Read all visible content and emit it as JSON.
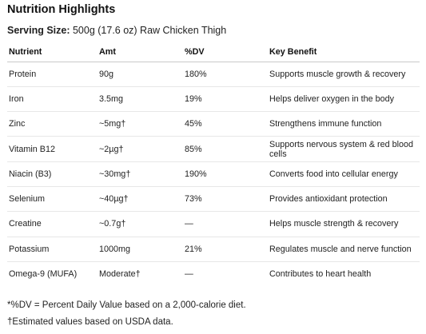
{
  "title": "Nutrition Highlights",
  "serving": {
    "label": "Serving Size:",
    "value": " 500g (17.6 oz) Raw Chicken Thigh"
  },
  "table": {
    "headers": [
      "Nutrient",
      "Amt",
      "%DV",
      "Key Benefit"
    ],
    "rows": [
      [
        "Protein",
        "90g",
        "180%",
        "Supports muscle growth & recovery"
      ],
      [
        "Iron",
        "3.5mg",
        "19%",
        "Helps deliver oxygen in the body"
      ],
      [
        "Zinc",
        "~5mg†",
        "45%",
        "Strengthens immune function"
      ],
      [
        "Vitamin B12",
        "~2µg†",
        "85%",
        "Supports nervous system & red blood cells"
      ],
      [
        "Niacin (B3)",
        "~30mg†",
        "190%",
        "Converts food into cellular energy"
      ],
      [
        "Selenium",
        "~40µg†",
        "73%",
        "Provides antioxidant protection"
      ],
      [
        "Creatine",
        "~0.7g†",
        "—",
        "Helps muscle strength & recovery"
      ],
      [
        "Potassium",
        "1000mg",
        "21%",
        "Regulates muscle and nerve function"
      ],
      [
        "Omega-9 (MUFA)",
        "Moderate†",
        "—",
        "Contributes to heart health"
      ]
    ]
  },
  "footnotes": {
    "dv": "*%DV = Percent Daily Value based on a 2,000-calorie diet.",
    "estimated": "†Estimated values based on USDA data."
  }
}
